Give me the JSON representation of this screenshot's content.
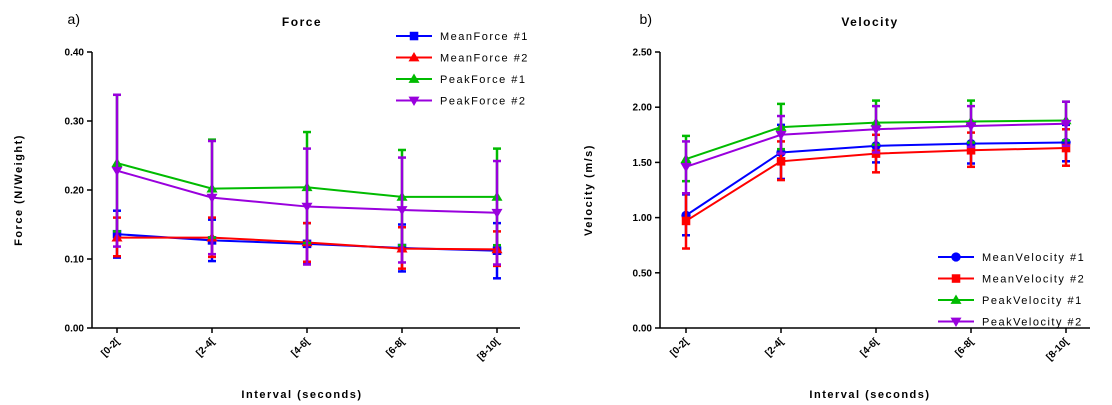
{
  "chart_data": [
    {
      "type": "line",
      "panel_label": "a)",
      "title": "Force",
      "xlabel": "Interval (seconds)",
      "ylabel": "Force (N/Weight)",
      "categories": [
        "[0-2[",
        "[2-4[",
        "[4-6[",
        "[6-8[",
        "[8-10["
      ],
      "ylim": [
        0,
        0.4
      ],
      "yticks": [
        0,
        0.1,
        0.2,
        0.3,
        0.4
      ],
      "ytick_labels": [
        "0.00",
        "0.10",
        "0.20",
        "0.30",
        "0.40"
      ],
      "legend_position": "top-right",
      "grid": false,
      "series": [
        {
          "name": "MeanForce #1",
          "color": "#0000ff",
          "marker": "square",
          "values": [
            0.136,
            0.127,
            0.122,
            0.116,
            0.112
          ],
          "err_low": [
            0.102,
            0.097,
            0.093,
            0.082,
            0.072
          ],
          "err_high": [
            0.17,
            0.157,
            0.152,
            0.15,
            0.152
          ]
        },
        {
          "name": "MeanForce #2",
          "color": "#ff0000",
          "marker": "triangle-up",
          "values": [
            0.131,
            0.131,
            0.124,
            0.115,
            0.114
          ],
          "err_low": [
            0.104,
            0.103,
            0.096,
            0.086,
            0.09
          ],
          "err_high": [
            0.16,
            0.16,
            0.152,
            0.146,
            0.14
          ]
        },
        {
          "name": "PeakForce #1",
          "color": "#00bb00",
          "marker": "triangle-up",
          "values": [
            0.239,
            0.202,
            0.204,
            0.19,
            0.19
          ],
          "err_low": [
            0.14,
            0.131,
            0.123,
            0.12,
            0.12
          ],
          "err_high": [
            0.338,
            0.273,
            0.284,
            0.258,
            0.26
          ]
        },
        {
          "name": "PeakForce #2",
          "color": "#9900dd",
          "marker": "triangle-down",
          "values": [
            0.228,
            0.189,
            0.176,
            0.171,
            0.167
          ],
          "err_low": [
            0.118,
            0.107,
            0.092,
            0.095,
            0.092
          ],
          "err_high": [
            0.338,
            0.271,
            0.26,
            0.247,
            0.242
          ]
        }
      ]
    },
    {
      "type": "line",
      "panel_label": "b)",
      "title": "Velocity",
      "xlabel": "Interval (seconds)",
      "ylabel": "Velocity (m/s)",
      "categories": [
        "[0-2[",
        "[2-4[",
        "[4-6[",
        "[6-8[",
        "[8-10["
      ],
      "ylim": [
        0,
        2.5
      ],
      "yticks": [
        0,
        0.5,
        1.0,
        1.5,
        2.0,
        2.5
      ],
      "ytick_labels": [
        "0.00",
        "0.50",
        "1.00",
        "1.50",
        "2.00",
        "2.50"
      ],
      "legend_position": "bottom-right",
      "grid": false,
      "series": [
        {
          "name": "MeanVelocity #1",
          "color": "#0000ff",
          "marker": "circle",
          "values": [
            1.02,
            1.59,
            1.65,
            1.67,
            1.68
          ],
          "err_low": [
            0.84,
            1.35,
            1.5,
            1.49,
            1.51
          ],
          "err_high": [
            1.21,
            1.84,
            1.8,
            1.84,
            1.84
          ]
        },
        {
          "name": "MeanVelocity #2",
          "color": "#ff0000",
          "marker": "square",
          "values": [
            0.97,
            1.51,
            1.58,
            1.61,
            1.63
          ],
          "err_low": [
            0.72,
            1.34,
            1.41,
            1.46,
            1.47
          ],
          "err_high": [
            1.22,
            1.69,
            1.75,
            1.77,
            1.8
          ]
        },
        {
          "name": "PeakVelocity #1",
          "color": "#00bb00",
          "marker": "triangle-up",
          "values": [
            1.53,
            1.82,
            1.86,
            1.87,
            1.88
          ],
          "err_low": [
            1.33,
            1.62,
            1.66,
            1.68,
            1.7
          ],
          "err_high": [
            1.74,
            2.03,
            2.06,
            2.06,
            2.05
          ]
        },
        {
          "name": "PeakVelocity #2",
          "color": "#9900dd",
          "marker": "triangle-down",
          "values": [
            1.46,
            1.75,
            1.8,
            1.83,
            1.85
          ],
          "err_low": [
            1.22,
            1.58,
            1.59,
            1.64,
            1.65
          ],
          "err_high": [
            1.69,
            1.92,
            2.01,
            2.01,
            2.05
          ]
        }
      ]
    }
  ]
}
